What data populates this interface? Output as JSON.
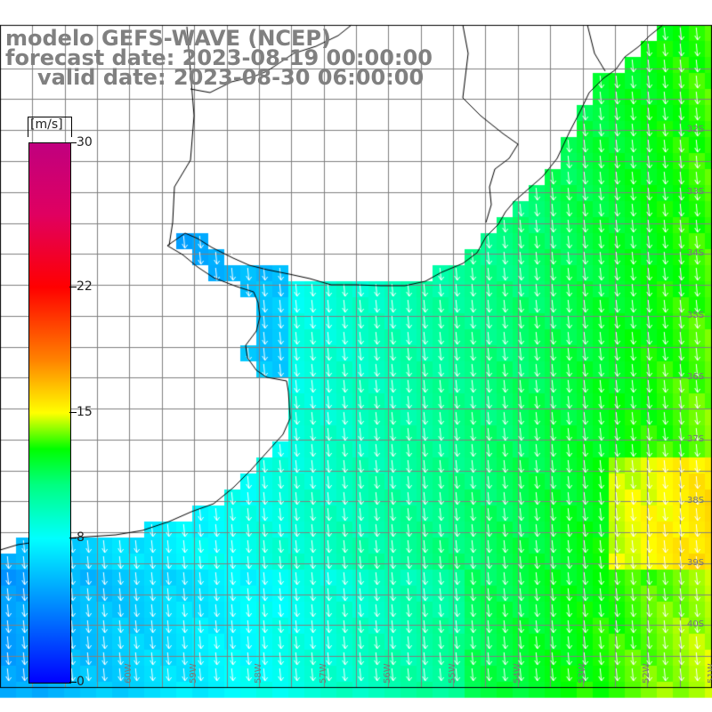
{
  "title": {
    "line1": "modelo GEFS-WAVE (NCEP)",
    "line2": "forecast date: 2023-08-19 00:00:00",
    "line3": "valid date: 2023-08-30 06:00:00"
  },
  "colorbar": {
    "unit": "[m/s]",
    "min": 0,
    "max": 30,
    "ticks": [
      "30",
      "22",
      "15",
      "8",
      "0"
    ],
    "tick_values": [
      30,
      22,
      15,
      8,
      0
    ],
    "stops": [
      {
        "v": 0,
        "c": "#0000ff"
      },
      {
        "v": 4,
        "c": "#0080ff"
      },
      {
        "v": 8,
        "c": "#00ffff"
      },
      {
        "v": 11,
        "c": "#00ff80"
      },
      {
        "v": 13,
        "c": "#00ff00"
      },
      {
        "v": 15,
        "c": "#ffff00"
      },
      {
        "v": 18,
        "c": "#ff8000"
      },
      {
        "v": 22,
        "c": "#ff0000"
      },
      {
        "v": 26,
        "c": "#e00060"
      },
      {
        "v": 30,
        "c": "#c0007f"
      }
    ]
  },
  "map": {
    "lon_min": -62,
    "lon_max": -51,
    "lat_min": -41,
    "lat_max": -30.3,
    "lat_labels": [
      "32S",
      "33S",
      "34S",
      "35S",
      "36S",
      "37S",
      "38S",
      "39S",
      "40S"
    ],
    "lat_values": [
      -32,
      -33,
      -34,
      -35,
      -36,
      -37,
      -38,
      -39,
      -40
    ],
    "lon_labels": [
      "61W",
      "60W",
      "59W",
      "58W",
      "57W",
      "56W",
      "55W",
      "54W",
      "53W",
      "52W",
      "51W"
    ],
    "lon_values": [
      -61,
      -60,
      -59,
      -58,
      -57,
      -56,
      -55,
      -54,
      -53,
      -52,
      -51
    ],
    "wind_direction_deg": 200,
    "land_color": "#ffffff",
    "coast_color": "#000000",
    "grid_color": "#808080",
    "arrow_color": "#ffffff"
  }
}
